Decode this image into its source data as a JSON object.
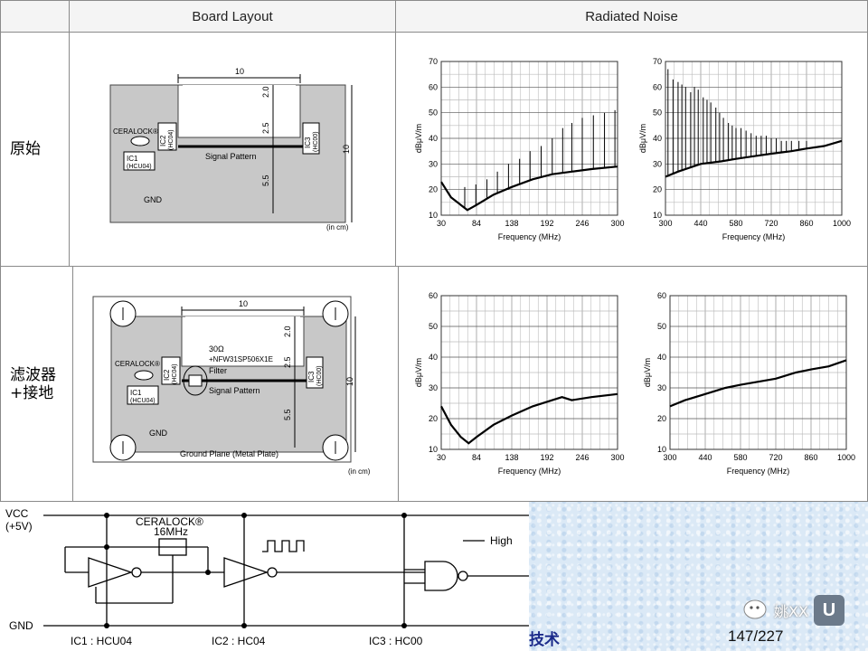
{
  "table": {
    "header_layout": "Board Layout",
    "header_noise": "Radiated Noise",
    "row1_label": "原始",
    "row2_label_l1": "滤波器",
    "row2_label_l2": "+接地"
  },
  "layout1": {
    "dim_width": "10",
    "dim_20": "2.0",
    "dim_25": "2.5",
    "dim_55": "5.5",
    "dim_height": "10",
    "ceralock": "CERALOCK®",
    "ic2": "IC2",
    "ic2_part": "(HC04)",
    "ic3": "IC3",
    "ic3_part": "(HC00)",
    "ic1": "IC1",
    "ic1_part": "(HCU04)",
    "signal": "Signal Pattern",
    "gnd": "GND",
    "unit": "(in cm)"
  },
  "layout2": {
    "dim_width": "10",
    "dim_20": "2.0",
    "dim_25": "2.5",
    "dim_55": "5.5",
    "dim_height": "10",
    "filter_l1": "30Ω",
    "filter_l2": "+NFW31SP506X1E",
    "filter_l3": "Filter",
    "ceralock": "CERALOCK®",
    "ic2": "IC2",
    "ic2_part": "(HC04)",
    "ic3": "IC3",
    "ic3_part": "(HC00)",
    "ic1": "IC1",
    "ic1_part": "(HCU04)",
    "signal": "Signal Pattern",
    "gnd": "GND",
    "ground_plane": "Ground Plane (Metal Plate)",
    "unit": "(in cm)"
  },
  "chart_data": [
    {
      "type": "line",
      "xlabel": "Frequency (MHz)",
      "ylabel": "dBμV/m",
      "xlim": [
        30,
        300
      ],
      "ylim": [
        10,
        70
      ],
      "xticks": [
        "30",
        "84",
        "138",
        "192",
        "246",
        "300"
      ],
      "yticks": [
        "10",
        "20",
        "30",
        "40",
        "50",
        "60",
        "70"
      ],
      "baseline": [
        [
          30,
          23
        ],
        [
          45,
          17
        ],
        [
          60,
          14
        ],
        [
          70,
          12
        ],
        [
          84,
          14
        ],
        [
          110,
          18
        ],
        [
          138,
          21
        ],
        [
          170,
          24
        ],
        [
          200,
          26
        ],
        [
          230,
          27
        ],
        [
          260,
          28
        ],
        [
          300,
          29
        ]
      ],
      "spikes": [
        [
          66,
          21
        ],
        [
          83,
          22
        ],
        [
          100,
          24
        ],
        [
          116,
          27
        ],
        [
          133,
          30
        ],
        [
          150,
          32
        ],
        [
          166,
          35
        ],
        [
          183,
          37
        ],
        [
          200,
          40
        ],
        [
          216,
          44
        ],
        [
          230,
          46
        ],
        [
          246,
          48
        ],
        [
          263,
          49
        ],
        [
          280,
          50
        ],
        [
          296,
          51
        ]
      ]
    },
    {
      "type": "line",
      "xlabel": "Frequency (MHz)",
      "ylabel": "dBμV/m",
      "xlim": [
        300,
        1000
      ],
      "ylim": [
        10,
        70
      ],
      "xticks": [
        "300",
        "440",
        "580",
        "720",
        "860",
        "1000"
      ],
      "yticks": [
        "10",
        "20",
        "30",
        "40",
        "50",
        "60",
        "70"
      ],
      "baseline": [
        [
          300,
          25
        ],
        [
          350,
          27
        ],
        [
          440,
          30
        ],
        [
          520,
          31
        ],
        [
          580,
          32
        ],
        [
          650,
          33
        ],
        [
          720,
          34
        ],
        [
          800,
          35
        ],
        [
          860,
          36
        ],
        [
          930,
          37
        ],
        [
          1000,
          39
        ]
      ],
      "spikes": [
        [
          310,
          67
        ],
        [
          330,
          63
        ],
        [
          350,
          62
        ],
        [
          365,
          61
        ],
        [
          380,
          60
        ],
        [
          400,
          58
        ],
        [
          415,
          60
        ],
        [
          430,
          59
        ],
        [
          450,
          56
        ],
        [
          465,
          55
        ],
        [
          480,
          54
        ],
        [
          500,
          52
        ],
        [
          515,
          50
        ],
        [
          530,
          48
        ],
        [
          550,
          46
        ],
        [
          565,
          45
        ],
        [
          580,
          44
        ],
        [
          600,
          44
        ],
        [
          620,
          43
        ],
        [
          640,
          42
        ],
        [
          660,
          41
        ],
        [
          680,
          41
        ],
        [
          700,
          41
        ],
        [
          720,
          40
        ],
        [
          740,
          40
        ],
        [
          760,
          39
        ],
        [
          780,
          39
        ],
        [
          800,
          39
        ],
        [
          830,
          39
        ],
        [
          860,
          39
        ]
      ]
    },
    {
      "type": "line",
      "xlabel": "Frequency (MHz)",
      "ylabel": "dBμV/m",
      "xlim": [
        30,
        300
      ],
      "ylim": [
        10,
        60
      ],
      "xticks": [
        "30",
        "84",
        "138",
        "192",
        "246",
        "300"
      ],
      "yticks": [
        "10",
        "20",
        "30",
        "40",
        "50",
        "60"
      ],
      "baseline": [
        [
          30,
          24
        ],
        [
          45,
          18
        ],
        [
          60,
          14
        ],
        [
          72,
          12
        ],
        [
          84,
          14
        ],
        [
          110,
          18
        ],
        [
          138,
          21
        ],
        [
          170,
          24
        ],
        [
          200,
          26
        ],
        [
          215,
          27
        ],
        [
          230,
          26
        ],
        [
          260,
          27
        ],
        [
          300,
          28
        ]
      ],
      "spikes": []
    },
    {
      "type": "line",
      "xlabel": "Frequency (MHz)",
      "ylabel": "dBμV/m",
      "xlim": [
        300,
        1000
      ],
      "ylim": [
        10,
        60
      ],
      "xticks": [
        "300",
        "440",
        "580",
        "720",
        "860",
        "1000"
      ],
      "yticks": [
        "10",
        "20",
        "30",
        "40",
        "50",
        "60"
      ],
      "baseline": [
        [
          300,
          24
        ],
        [
          360,
          26
        ],
        [
          440,
          28
        ],
        [
          520,
          30
        ],
        [
          580,
          31
        ],
        [
          650,
          32
        ],
        [
          720,
          33
        ],
        [
          800,
          35
        ],
        [
          860,
          36
        ],
        [
          930,
          37
        ],
        [
          1000,
          39
        ]
      ],
      "spikes": []
    }
  ],
  "circuit": {
    "vcc": "VCC",
    "vcc_v": "(+5V)",
    "gnd": "GND",
    "ceralock": "CERALOCK®",
    "freq": "16MHz",
    "high": "High",
    "ic1": "IC1 : HCU04",
    "ic2": "IC2 : HC04",
    "ic3": "IC3 : HC00"
  },
  "footer": {
    "title_fragment": "技术",
    "page": "147/227",
    "watermark": "姚XX"
  }
}
